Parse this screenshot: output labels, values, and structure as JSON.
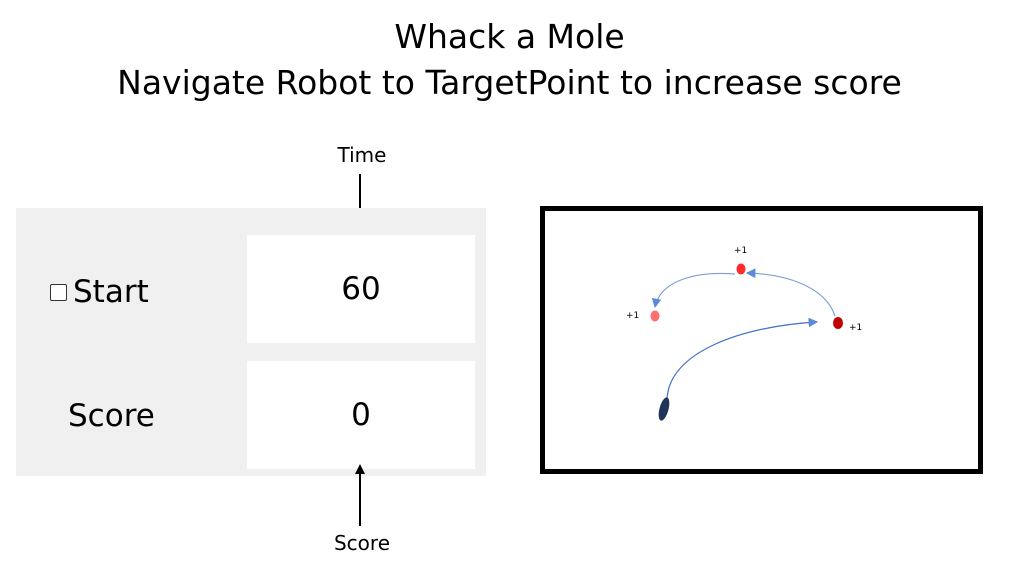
{
  "title": {
    "line1": "Whack a Mole",
    "line2": "Navigate Robot to TargetPoint to increase score"
  },
  "captions": {
    "time": "Time",
    "score": "Score"
  },
  "panel": {
    "start_label": "Start",
    "start_checked": false,
    "score_label": "Score",
    "time_value": "60",
    "score_value": "0"
  },
  "field": {
    "targets": [
      {
        "id": "target-top",
        "reward": "+1",
        "color": "#ff2b2b"
      },
      {
        "id": "target-left",
        "reward": "+1",
        "color": "#ff6f6f"
      },
      {
        "id": "target-right",
        "reward": "+1",
        "color": "#c00000"
      }
    ],
    "robot_color": "#1f3458",
    "path_color": "#4472c4"
  }
}
